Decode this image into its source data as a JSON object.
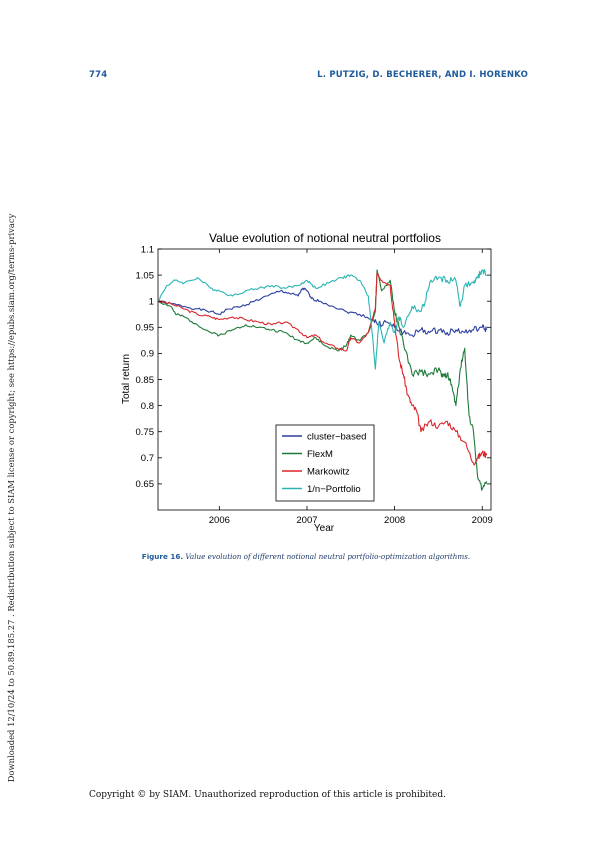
{
  "page": {
    "number": "774",
    "running_head": "L. PUTZIG, D. BECHERER, AND I. HORENKO",
    "side_note": "Downloaded 12/10/24 to 50.89.185.27 . Redistribution subject to SIAM license or copyright; see https://epubs.siam.org/terms-privacy",
    "footer": "Copyright © by SIAM. Unauthorized reproduction of this article is prohibited."
  },
  "figure": {
    "label": "Figure 16.",
    "caption": "Value evolution of different notional neutral portfolio-optimization algorithms."
  },
  "chart_data": {
    "type": "line",
    "title": "Value evolution of notional neutral portfolios",
    "xlabel": "Year",
    "ylabel": "Total return",
    "xlim": [
      2005.3,
      2009.1
    ],
    "ylim": [
      0.6,
      1.1
    ],
    "xticks": [
      2006,
      2007,
      2008,
      2009
    ],
    "yticks": [
      0.65,
      0.7,
      0.75,
      0.8,
      0.85,
      0.9,
      0.95,
      1,
      1.05,
      1.1
    ],
    "ytick_labels": [
      "0.65",
      "0.7",
      "0.75",
      "0.8",
      "0.85",
      "0.9",
      "0.95",
      "1",
      "1.05",
      "1.1"
    ],
    "grid": false,
    "legend_position": "lower-center",
    "series": [
      {
        "name": "cluster−based",
        "color": "#2b3fa0",
        "x": [
          2005.3,
          2005.45,
          2005.6,
          2005.75,
          2005.9,
          2006.0,
          2006.1,
          2006.25,
          2006.4,
          2006.55,
          2006.7,
          2006.8,
          2006.9,
          2006.95,
          2007.0,
          2007.05,
          2007.15,
          2007.3,
          2007.45,
          2007.6,
          2007.75,
          2007.82,
          2007.9,
          2008.0,
          2008.1,
          2008.2,
          2008.3,
          2008.4,
          2008.5,
          2008.6,
          2008.7,
          2008.8,
          2008.9,
          2009.0,
          2009.05
        ],
        "y": [
          1.0,
          0.995,
          0.99,
          0.985,
          0.98,
          0.975,
          0.985,
          0.99,
          1.0,
          1.01,
          1.02,
          1.015,
          1.01,
          1.025,
          1.02,
          1.005,
          1.0,
          0.99,
          0.98,
          0.975,
          0.965,
          0.955,
          0.96,
          0.95,
          0.94,
          0.935,
          0.945,
          0.94,
          0.945,
          0.94,
          0.945,
          0.94,
          0.945,
          0.95,
          0.945
        ]
      },
      {
        "name": "FlexM",
        "color": "#1f7a3a",
        "x": [
          2005.3,
          2005.45,
          2005.5,
          2005.6,
          2005.75,
          2005.9,
          2006.0,
          2006.15,
          2006.3,
          2006.45,
          2006.6,
          2006.75,
          2006.9,
          2007.0,
          2007.1,
          2007.2,
          2007.35,
          2007.45,
          2007.5,
          2007.6,
          2007.7,
          2007.78,
          2007.8,
          2007.85,
          2007.95,
          2008.0,
          2008.05,
          2008.1,
          2008.2,
          2008.3,
          2008.4,
          2008.5,
          2008.55,
          2008.6,
          2008.65,
          2008.7,
          2008.75,
          2008.8,
          2008.85,
          2008.9,
          2008.95,
          2009.0,
          2009.05
        ],
        "y": [
          1.0,
          0.99,
          0.975,
          0.97,
          0.955,
          0.94,
          0.935,
          0.945,
          0.955,
          0.95,
          0.945,
          0.94,
          0.925,
          0.92,
          0.93,
          0.915,
          0.905,
          0.915,
          0.935,
          0.925,
          0.94,
          0.98,
          1.06,
          1.02,
          1.04,
          0.98,
          0.95,
          0.92,
          0.86,
          0.865,
          0.86,
          0.87,
          0.855,
          0.86,
          0.84,
          0.8,
          0.87,
          0.91,
          0.78,
          0.75,
          0.66,
          0.64,
          0.655
        ]
      },
      {
        "name": "Markowitz",
        "color": "#d9262b",
        "x": [
          2005.3,
          2005.45,
          2005.6,
          2005.75,
          2005.9,
          2006.0,
          2006.15,
          2006.3,
          2006.45,
          2006.6,
          2006.75,
          2006.9,
          2007.0,
          2007.1,
          2007.2,
          2007.35,
          2007.45,
          2007.5,
          2007.6,
          2007.7,
          2007.78,
          2007.8,
          2007.85,
          2007.95,
          2008.0,
          2008.05,
          2008.1,
          2008.15,
          2008.2,
          2008.25,
          2008.3,
          2008.4,
          2008.5,
          2008.6,
          2008.7,
          2008.8,
          2008.9,
          2008.95,
          2009.0,
          2009.05
        ],
        "y": [
          1.0,
          0.995,
          0.985,
          0.975,
          0.97,
          0.965,
          0.97,
          0.965,
          0.96,
          0.955,
          0.96,
          0.945,
          0.93,
          0.935,
          0.92,
          0.91,
          0.905,
          0.93,
          0.92,
          0.94,
          0.985,
          1.055,
          1.04,
          1.03,
          0.96,
          0.89,
          0.86,
          0.82,
          0.8,
          0.79,
          0.75,
          0.77,
          0.76,
          0.77,
          0.75,
          0.73,
          0.69,
          0.7,
          0.71,
          0.705
        ]
      },
      {
        "name": "1/n−Portfolio",
        "color": "#2ab4b4",
        "x": [
          2005.3,
          2005.4,
          2005.5,
          2005.6,
          2005.75,
          2005.9,
          2006.0,
          2006.15,
          2006.3,
          2006.45,
          2006.6,
          2006.75,
          2006.9,
          2007.0,
          2007.1,
          2007.25,
          2007.4,
          2007.5,
          2007.6,
          2007.7,
          2007.75,
          2007.78,
          2007.82,
          2007.88,
          2007.95,
          2008.0,
          2008.05,
          2008.1,
          2008.2,
          2008.3,
          2008.35,
          2008.4,
          2008.5,
          2008.6,
          2008.7,
          2008.75,
          2008.8,
          2008.9,
          2008.95,
          2009.0,
          2009.05
        ],
        "y": [
          1.0,
          1.03,
          1.04,
          1.035,
          1.045,
          1.025,
          1.02,
          1.01,
          1.02,
          1.025,
          1.03,
          1.025,
          1.03,
          1.04,
          1.025,
          1.035,
          1.045,
          1.05,
          1.04,
          1.01,
          0.93,
          0.87,
          0.96,
          0.92,
          0.96,
          0.94,
          0.97,
          0.95,
          0.99,
          0.98,
          1.0,
          1.035,
          1.045,
          1.04,
          1.04,
          0.99,
          1.03,
          1.035,
          1.045,
          1.06,
          1.05
        ]
      }
    ]
  }
}
